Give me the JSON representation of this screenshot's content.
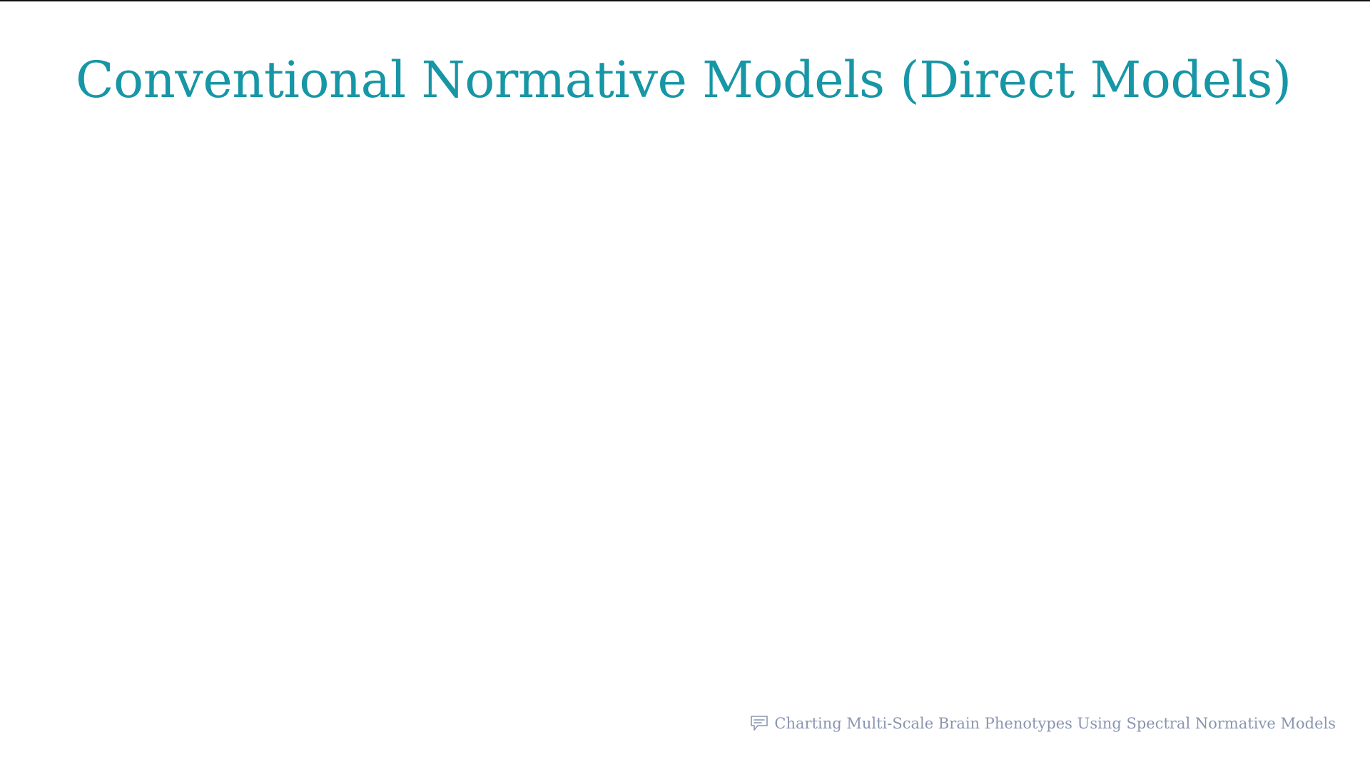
{
  "slide": {
    "title": "Conventional Normative Models (Direct Models)"
  },
  "footer": {
    "icon": "comment-icon",
    "text": "Charting Multi-Scale Brain Phenotypes Using Spectral Normative Models"
  },
  "colors": {
    "title": "#1796a6",
    "footer_text": "#8a95b0",
    "background": "#ffffff",
    "top_rule": "#111111"
  }
}
